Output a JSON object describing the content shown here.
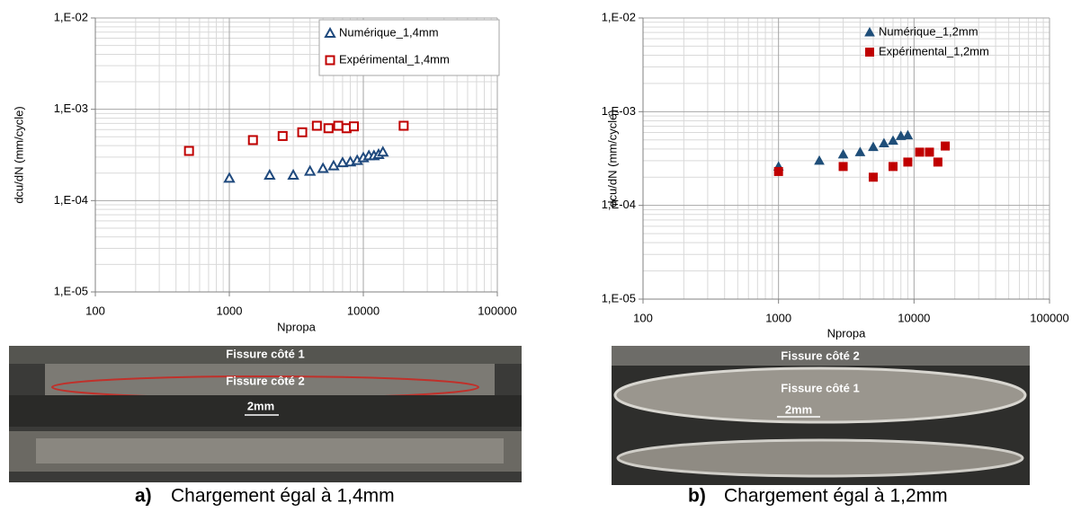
{
  "chart_data": [
    {
      "type": "scatter",
      "xlabel": "Npropa",
      "ylabel": "dcu/dN (mm/cycle)",
      "xscale": "log",
      "yscale": "log",
      "grid": true,
      "minor_grid": true,
      "legend": "upper right",
      "legend_frame": true,
      "xlim": [
        100,
        100000
      ],
      "xticks": [
        100,
        1000,
        10000,
        100000
      ],
      "ylim": [
        1e-05,
        0.01
      ],
      "yticks": [
        {
          "value": 1e-05,
          "label": "1,E-05"
        },
        {
          "value": 0.0001,
          "label": "1,E-04"
        },
        {
          "value": 0.001,
          "label": "1,E-03"
        },
        {
          "value": 0.01,
          "label": "1,E-02"
        }
      ],
      "series": [
        {
          "name": "Numérique_1,4mm",
          "color": "#1f497d",
          "marker": "triangle",
          "filled": false,
          "x": [
            1000,
            2000,
            3000,
            4000,
            5000,
            6000,
            7000,
            8000,
            9000,
            10000,
            11000,
            12000,
            13000,
            14000
          ],
          "values": [
            0.000176,
            0.00019,
            0.00019,
            0.00021,
            0.000225,
            0.00024,
            0.00026,
            0.000265,
            0.000275,
            0.000295,
            0.00031,
            0.00031,
            0.00032,
            0.00034
          ]
        },
        {
          "name": "Expérimental_1,4mm",
          "color": "#c00000",
          "marker": "square",
          "filled": false,
          "x": [
            500,
            1500,
            2500,
            3500,
            4500,
            5500,
            6500,
            7500,
            8500,
            20000
          ],
          "values": [
            0.00035,
            0.00046,
            0.00051,
            0.00056,
            0.00066,
            0.00062,
            0.00066,
            0.00062,
            0.00065,
            0.00066
          ]
        }
      ]
    },
    {
      "type": "scatter",
      "xlabel": "Npropa",
      "ylabel": "dcu/dN (mm/cycle)",
      "xscale": "log",
      "yscale": "log",
      "grid": true,
      "minor_grid": true,
      "legend": "upper right",
      "legend_frame": false,
      "xlim": [
        100,
        100000
      ],
      "xticks": [
        100,
        1000,
        10000,
        100000
      ],
      "ylim": [
        1e-05,
        0.01
      ],
      "yticks": [
        {
          "value": 1e-05,
          "label": "1,E-05"
        },
        {
          "value": 0.0001,
          "label": "1,E-04"
        },
        {
          "value": 0.001,
          "label": "1,E-03"
        },
        {
          "value": 0.01,
          "label": "1,E-02"
        }
      ],
      "series": [
        {
          "name": "Numérique_1,2mm",
          "color": "#1f4e79",
          "marker": "triangle",
          "filled": true,
          "x": [
            1000,
            2000,
            3000,
            4000,
            5000,
            6000,
            7000,
            8000,
            9000
          ],
          "values": [
            0.00026,
            0.0003,
            0.00035,
            0.00037,
            0.00042,
            0.00046,
            0.00049,
            0.00055,
            0.00056
          ]
        },
        {
          "name": "Expérimental_1,2mm",
          "color": "#c00000",
          "marker": "square",
          "filled": true,
          "x": [
            1000,
            3000,
            5000,
            7000,
            9000,
            11000,
            13000,
            15000,
            17000
          ],
          "values": [
            0.00023,
            0.00026,
            0.0002,
            0.00026,
            0.00029,
            0.00037,
            0.00037,
            0.00029,
            0.00043
          ]
        }
      ]
    }
  ],
  "panels": [
    {
      "label": "a)",
      "caption": "Chargement égal à 1,4mm",
      "photo_labels": [
        "Fissure côté 1",
        "Fissure côté 2",
        "2mm"
      ]
    },
    {
      "label": "b)",
      "caption": "Chargement égal à 1,2mm",
      "photo_labels": [
        "Fissure côté 2",
        "Fissure côté 1",
        "2mm"
      ]
    }
  ]
}
